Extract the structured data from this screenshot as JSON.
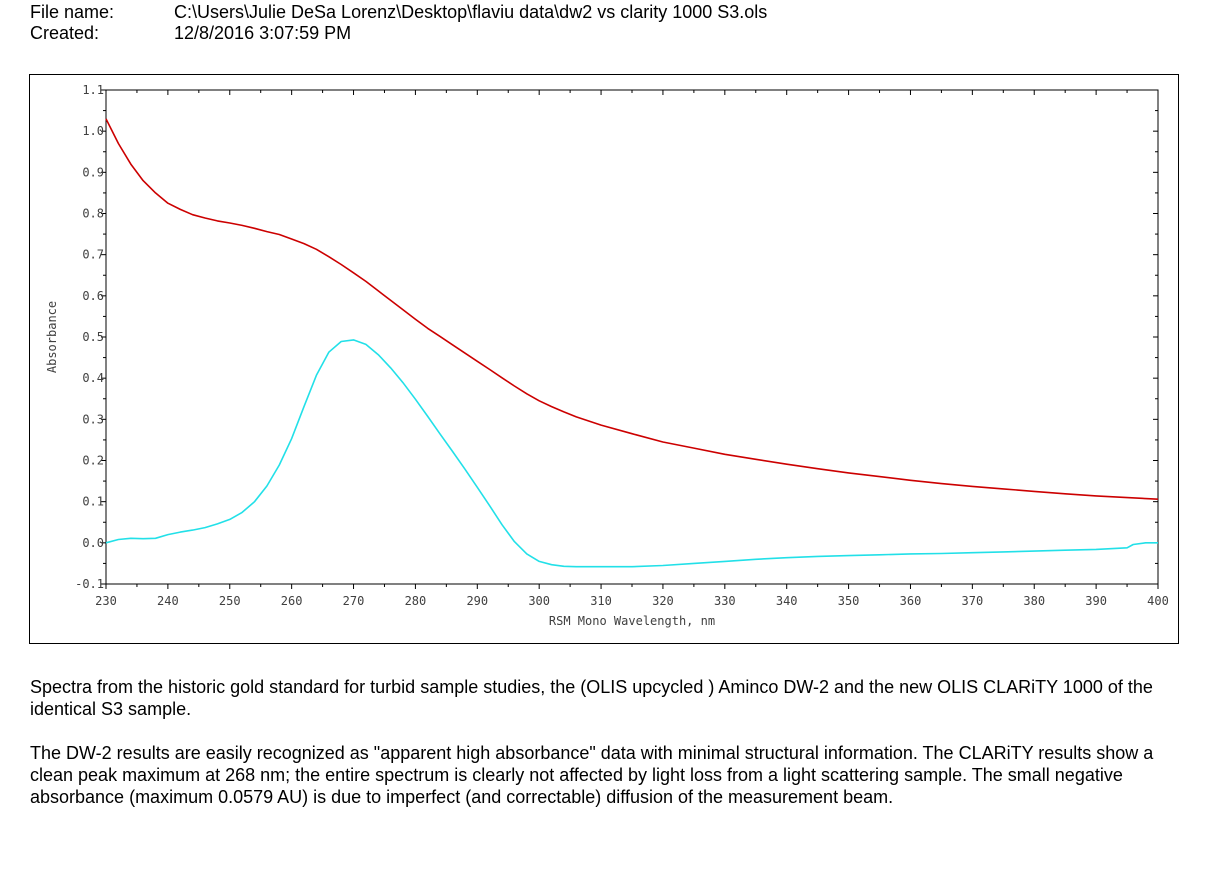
{
  "header": {
    "file_label": "File name:",
    "file_value": "C:\\Users\\Julie DeSa Lorenz\\Desktop\\flaviu data\\dw2 vs clarity 1000 S3.ols",
    "created_label": "Created:",
    "created_value": "12/8/2016 3:07:59 PM"
  },
  "chart_data": {
    "type": "line",
    "xlabel": "RSM Mono Wavelength, nm",
    "ylabel": "Absorbance",
    "xlim": [
      230,
      400
    ],
    "ylim": [
      -0.1,
      1.1
    ],
    "x_ticks": [
      230,
      240,
      250,
      260,
      270,
      280,
      290,
      300,
      310,
      320,
      330,
      340,
      350,
      360,
      370,
      380,
      390,
      400
    ],
    "y_ticks": [
      -0.1,
      0.0,
      0.1,
      0.2,
      0.3,
      0.4,
      0.5,
      0.6,
      0.7,
      0.8,
      0.9,
      1.0,
      1.1
    ],
    "x_tick_labels": [
      "230",
      "240",
      "250",
      "260",
      "270",
      "280",
      "290",
      "300",
      "310",
      "320",
      "330",
      "340",
      "350",
      "360",
      "370",
      "380",
      "390",
      "400"
    ],
    "y_tick_labels": [
      "-0.1",
      "0.0",
      "0.1",
      "0.2",
      "0.3",
      "0.4",
      "0.5",
      "0.6",
      "0.7",
      "0.8",
      "0.9",
      "1.0",
      "1.1"
    ],
    "grid": false,
    "series": [
      {
        "color": "#cc0000",
        "x": [
          230,
          232,
          234,
          236,
          238,
          240,
          242,
          244,
          246,
          248,
          250,
          252,
          254,
          256,
          258,
          260,
          262,
          264,
          266,
          268,
          270,
          272,
          274,
          276,
          278,
          280,
          282,
          284,
          286,
          288,
          290,
          292,
          294,
          296,
          298,
          300,
          302,
          304,
          306,
          308,
          310,
          315,
          320,
          325,
          330,
          335,
          340,
          345,
          350,
          355,
          360,
          365,
          370,
          375,
          380,
          385,
          390,
          395,
          400
        ],
        "y": [
          1.03,
          0.97,
          0.92,
          0.88,
          0.85,
          0.825,
          0.81,
          0.797,
          0.789,
          0.782,
          0.777,
          0.771,
          0.764,
          0.756,
          0.749,
          0.738,
          0.727,
          0.713,
          0.695,
          0.676,
          0.656,
          0.635,
          0.612,
          0.589,
          0.566,
          0.543,
          0.521,
          0.501,
          0.481,
          0.461,
          0.441,
          0.421,
          0.401,
          0.381,
          0.362,
          0.345,
          0.331,
          0.318,
          0.306,
          0.296,
          0.286,
          0.265,
          0.245,
          0.23,
          0.215,
          0.203,
          0.191,
          0.18,
          0.17,
          0.161,
          0.152,
          0.144,
          0.137,
          0.131,
          0.125,
          0.119,
          0.114,
          0.11,
          0.106
        ]
      },
      {
        "color": "#22e0e8",
        "x": [
          230,
          232,
          234,
          236,
          238,
          240,
          242,
          244,
          246,
          248,
          250,
          252,
          254,
          256,
          258,
          260,
          262,
          264,
          266,
          268,
          270,
          272,
          274,
          276,
          278,
          280,
          282,
          284,
          286,
          288,
          290,
          292,
          294,
          296,
          298,
          300,
          302,
          304,
          306,
          308,
          310,
          315,
          320,
          325,
          330,
          335,
          340,
          345,
          350,
          355,
          360,
          365,
          370,
          375,
          380,
          385,
          390,
          395,
          396,
          398,
          400
        ],
        "y": [
          0.0,
          0.008,
          0.011,
          0.01,
          0.011,
          0.02,
          0.026,
          0.031,
          0.037,
          0.046,
          0.057,
          0.074,
          0.1,
          0.138,
          0.189,
          0.253,
          0.331,
          0.407,
          0.463,
          0.489,
          0.493,
          0.482,
          0.457,
          0.425,
          0.389,
          0.349,
          0.307,
          0.264,
          0.222,
          0.179,
          0.135,
          0.09,
          0.044,
          0.003,
          -0.027,
          -0.045,
          -0.053,
          -0.057,
          -0.058,
          -0.058,
          -0.058,
          -0.058,
          -0.055,
          -0.05,
          -0.045,
          -0.04,
          -0.036,
          -0.033,
          -0.031,
          -0.029,
          -0.027,
          -0.026,
          -0.024,
          -0.022,
          -0.02,
          -0.018,
          -0.016,
          -0.012,
          -0.004,
          0.0,
          0.0
        ]
      }
    ]
  },
  "caption": {
    "p1": "Spectra from the historic gold standard for turbid sample studies, the (OLIS upcycled ) Aminco DW-2 and the new OLIS CLARiTY 1000 of the identical S3 sample.",
    "p2": "The DW-2 results are easily recognized as \"apparent high absorbance\" data with minimal structural information. The CLARiTY results show a clean peak maximum at 268 nm; the entire spectrum is clearly not affected by light loss from a light scattering sample. The small negative absorbance (maximum 0.0579 AU) is due to imperfect (and correctable) diffusion of the measurement beam."
  }
}
